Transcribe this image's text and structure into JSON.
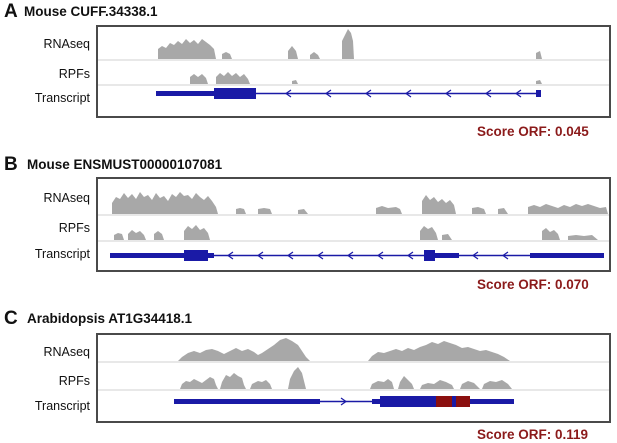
{
  "panels": [
    {
      "letter": "A",
      "title": "Mouse CUFF.34338.1",
      "track_labels": [
        "RNAseq",
        "RPFs",
        "Transcript"
      ],
      "score_label": "Score ORF: 0.045"
    },
    {
      "letter": "B",
      "title": "Mouse ENSMUST00000107081",
      "track_labels": [
        "RNAseq",
        "RPFs",
        "Transcript"
      ],
      "score_label": "Score ORF: 0.070"
    },
    {
      "letter": "C",
      "title": "Arabidopsis AT1G34418.1",
      "track_labels": [
        "RNAseq",
        "RPFs",
        "Transcript"
      ],
      "score_label": "Score ORF: 0.119"
    }
  ],
  "colors": {
    "coverage": "#a8a8a8",
    "transcript": "#1a1aa6",
    "orf": "#8b1010",
    "score_text": "#8b1a1a",
    "box_border": "#4a4a4a"
  }
}
